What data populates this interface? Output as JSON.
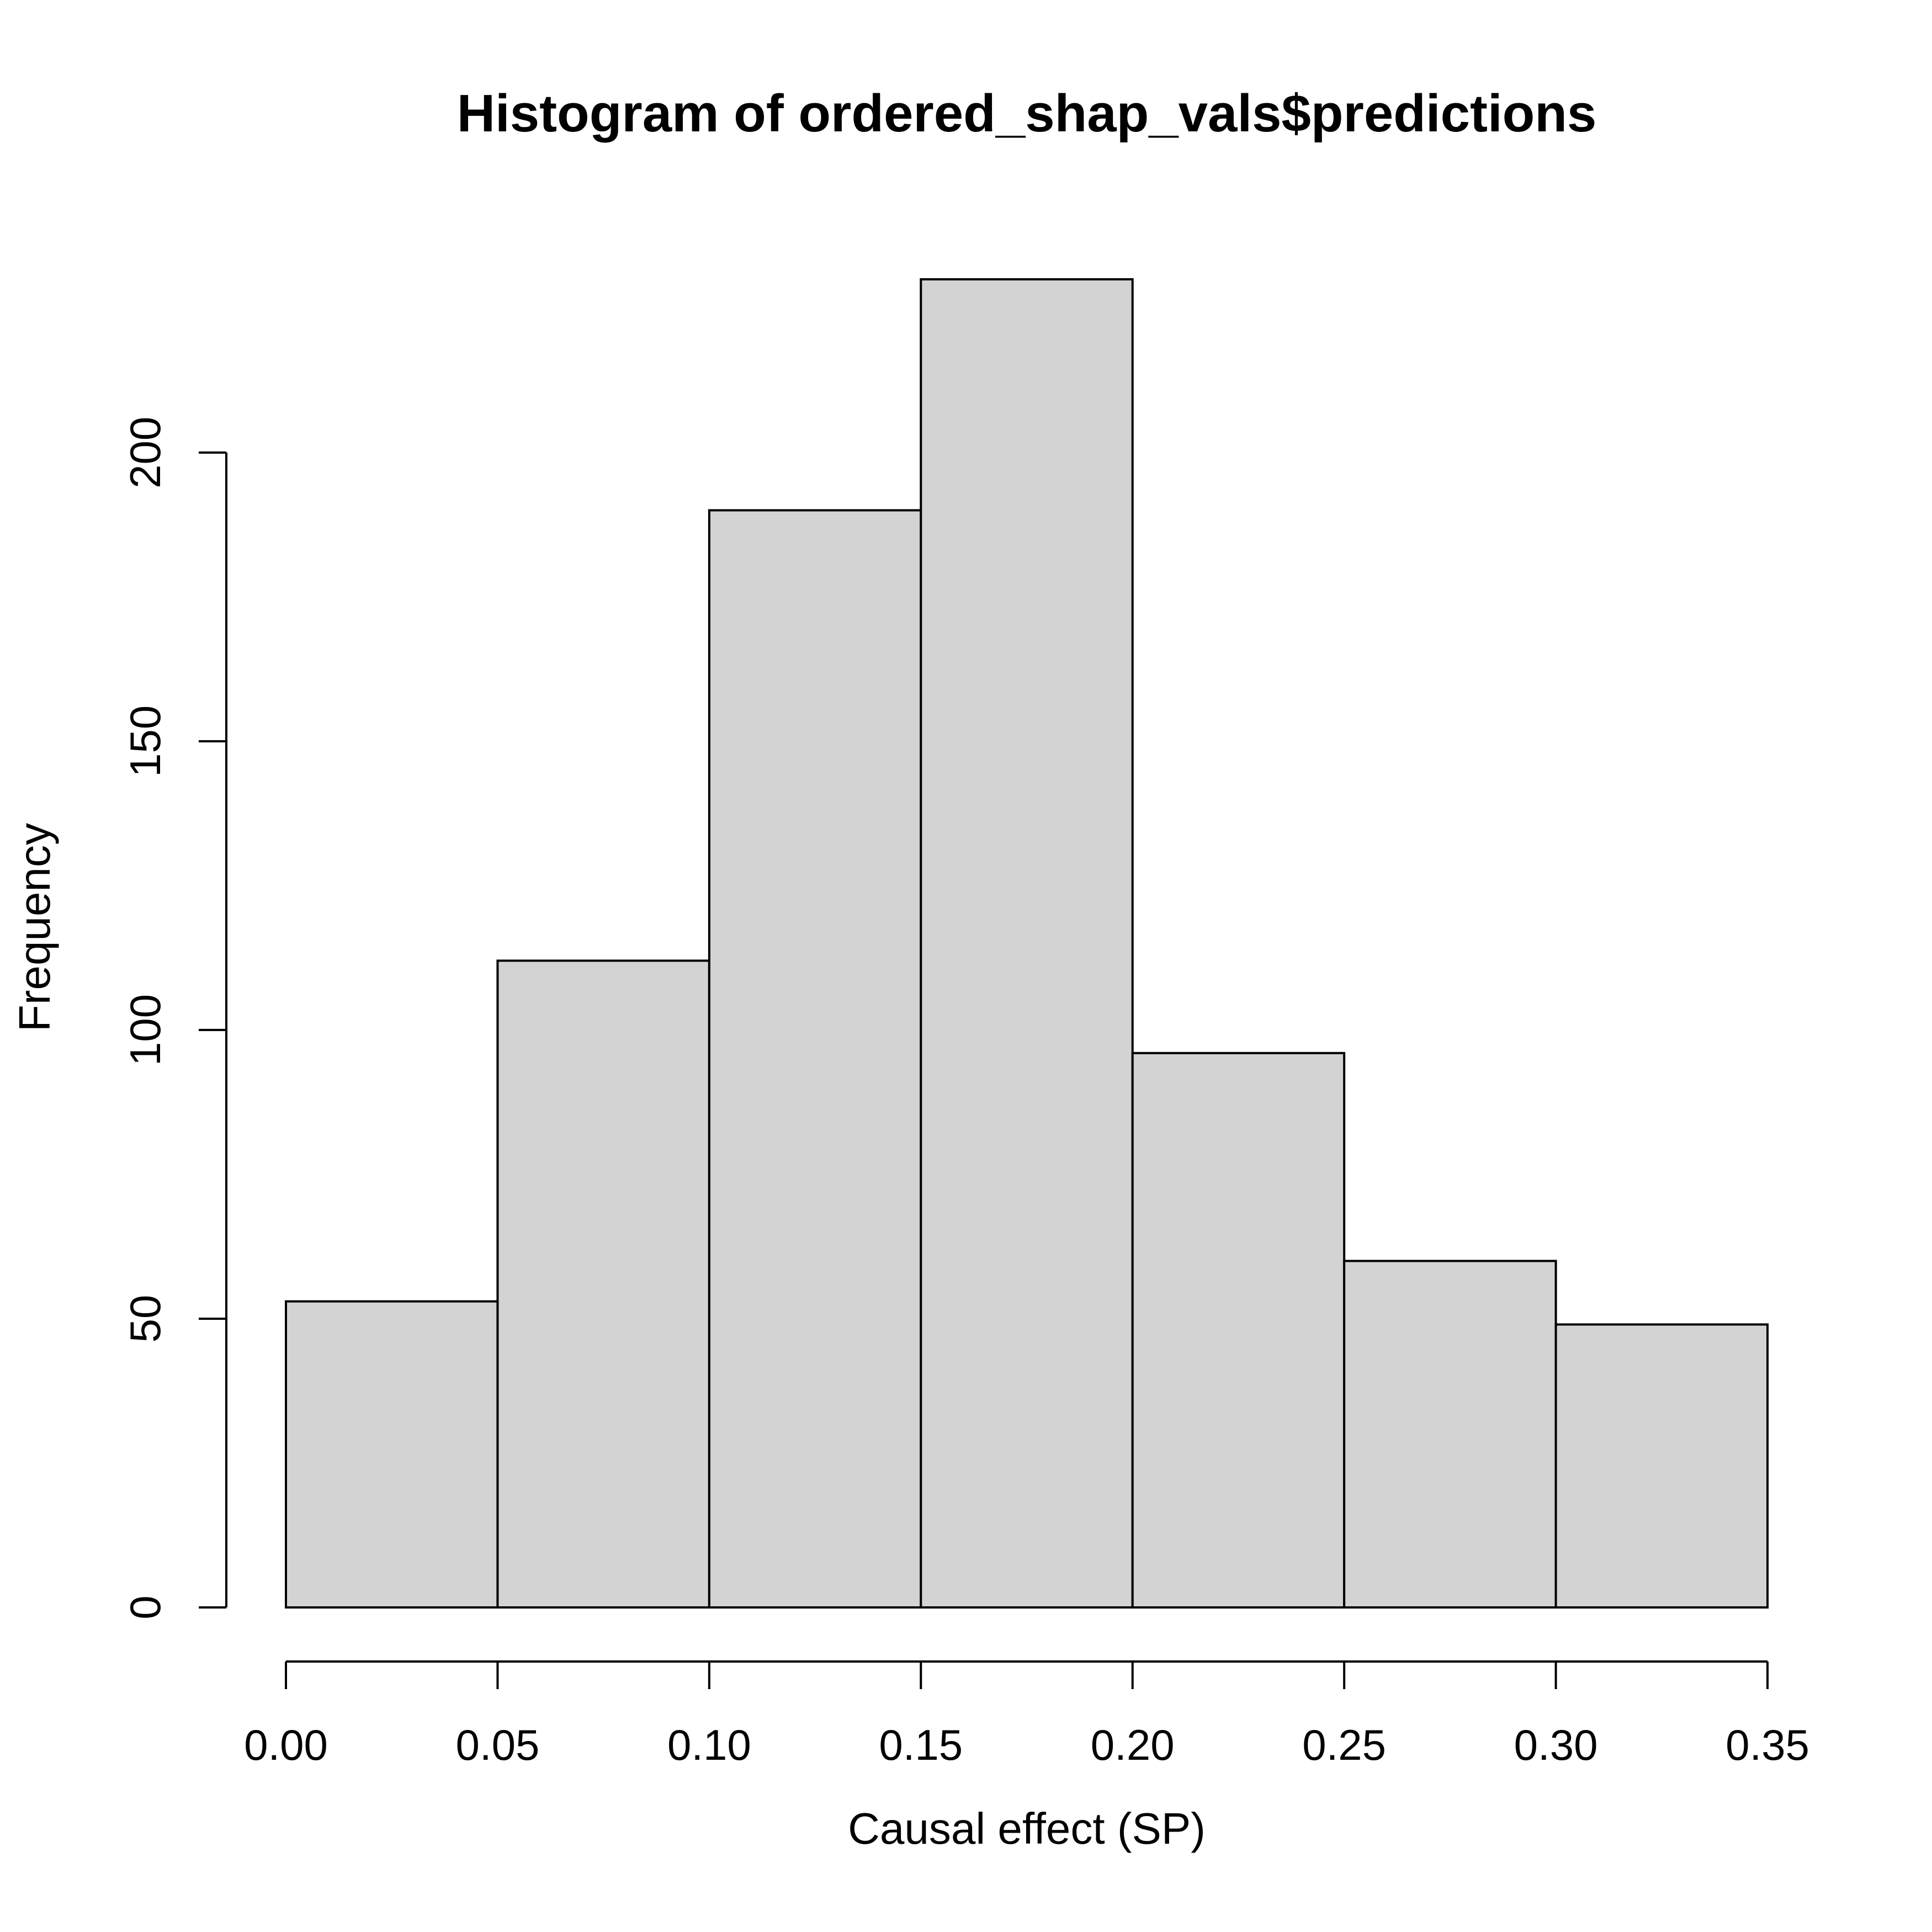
{
  "chart_data": {
    "type": "bar",
    "histogram": true,
    "title": "Histogram of ordered_shap_vals$predictions",
    "xlabel": "Causal effect (SP)",
    "ylabel": "Frequency",
    "bin_edges": [
      0.0,
      0.05,
      0.1,
      0.15,
      0.2,
      0.25,
      0.3,
      0.35
    ],
    "values": [
      53,
      112,
      190,
      230,
      96,
      60,
      49
    ],
    "xlim": [
      0.0,
      0.35
    ],
    "ylim": [
      0,
      230
    ],
    "x_ticks": [
      0.0,
      0.05,
      0.1,
      0.15,
      0.2,
      0.25,
      0.3,
      0.35
    ],
    "x_tick_labels": [
      "0.00",
      "0.05",
      "0.10",
      "0.15",
      "0.20",
      "0.25",
      "0.30",
      "0.35"
    ],
    "y_ticks": [
      0,
      50,
      100,
      150,
      200
    ],
    "y_tick_labels": [
      "0",
      "50",
      "100",
      "150",
      "200"
    ],
    "bar_color": "#d3d3d3",
    "border_color": "#000000",
    "grid": false,
    "legend": "none"
  }
}
